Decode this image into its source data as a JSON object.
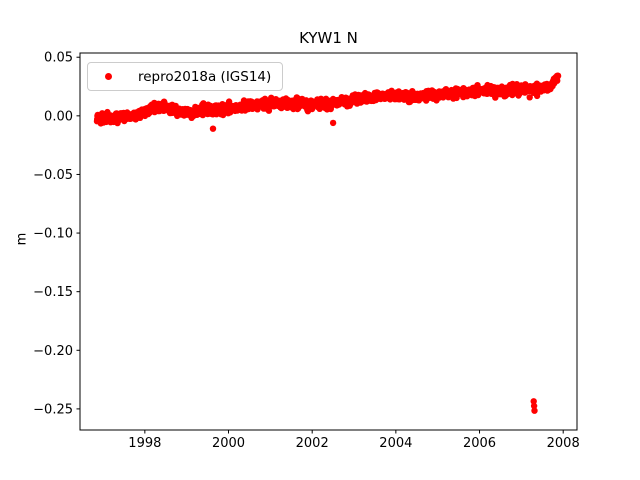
{
  "chart_data": {
    "type": "scatter",
    "title": "KYW1 N",
    "xlabel": "",
    "ylabel": "m",
    "xlim": [
      1996.45,
      2008.33
    ],
    "ylim": [
      -0.268,
      0.0536
    ],
    "grid": false,
    "background_color": "#ffffff",
    "axis_color": "#000000",
    "xticks": [
      {
        "v": 1998,
        "label": "1998"
      },
      {
        "v": 2000,
        "label": "2000"
      },
      {
        "v": 2002,
        "label": "2002"
      },
      {
        "v": 2004,
        "label": "2004"
      },
      {
        "v": 2006,
        "label": "2006"
      },
      {
        "v": 2008,
        "label": "2008"
      }
    ],
    "yticks": [
      {
        "v": 0.05,
        "label": "0.05"
      },
      {
        "v": 0.0,
        "label": "0.00"
      },
      {
        "v": -0.05,
        "label": "−0.05"
      },
      {
        "v": -0.1,
        "label": "−0.10"
      },
      {
        "v": -0.15,
        "label": "−0.15"
      },
      {
        "v": -0.2,
        "label": "−0.20"
      },
      {
        "v": -0.25,
        "label": "−0.25"
      }
    ],
    "legend": {
      "position": "upper left",
      "entries": [
        {
          "label": "repro2018a (IGS14)",
          "color": "#ff0000",
          "marker": "dot"
        }
      ]
    },
    "series": [
      {
        "name": "repro2018a (IGS14)",
        "color": "#ff0000",
        "marker": "dot",
        "marker_radius_px": 3.2,
        "x_start": 1996.85,
        "x_end": 2007.88,
        "points_per_year": 150,
        "noise_std": 0.002,
        "seed": 12345,
        "trend": [
          [
            1996.85,
            -0.0015
          ],
          [
            1997.1,
            -0.002
          ],
          [
            1997.35,
            -0.0025
          ],
          [
            1997.6,
            -0.001
          ],
          [
            1997.9,
            0.002
          ],
          [
            1998.2,
            0.006
          ],
          [
            1998.45,
            0.007
          ],
          [
            1998.7,
            0.005
          ],
          [
            1999.0,
            0.003
          ],
          [
            1999.3,
            0.004
          ],
          [
            1999.6,
            0.005
          ],
          [
            1999.9,
            0.005
          ],
          [
            2000.2,
            0.006
          ],
          [
            2000.5,
            0.009
          ],
          [
            2000.8,
            0.01
          ],
          [
            2001.1,
            0.011
          ],
          [
            2001.4,
            0.01
          ],
          [
            2001.7,
            0.01
          ],
          [
            2002.0,
            0.01
          ],
          [
            2002.3,
            0.009
          ],
          [
            2002.6,
            0.012
          ],
          [
            2002.9,
            0.013
          ],
          [
            2003.2,
            0.015
          ],
          [
            2003.5,
            0.016
          ],
          [
            2003.8,
            0.017
          ],
          [
            2004.1,
            0.018
          ],
          [
            2004.4,
            0.017
          ],
          [
            2004.7,
            0.017
          ],
          [
            2005.0,
            0.018
          ],
          [
            2005.3,
            0.019
          ],
          [
            2005.6,
            0.02
          ],
          [
            2005.9,
            0.021
          ],
          [
            2006.2,
            0.022
          ],
          [
            2006.5,
            0.021
          ],
          [
            2006.8,
            0.022
          ],
          [
            2007.1,
            0.023
          ],
          [
            2007.4,
            0.023
          ],
          [
            2007.65,
            0.025
          ],
          [
            2007.8,
            0.029
          ],
          [
            2007.88,
            0.034
          ]
        ],
        "outliers": [
          [
            1999.63,
            -0.011
          ],
          [
            2002.5,
            -0.006
          ],
          [
            2007.295,
            -0.2435
          ],
          [
            2007.305,
            -0.2475
          ],
          [
            2007.315,
            -0.2515
          ]
        ]
      }
    ]
  }
}
